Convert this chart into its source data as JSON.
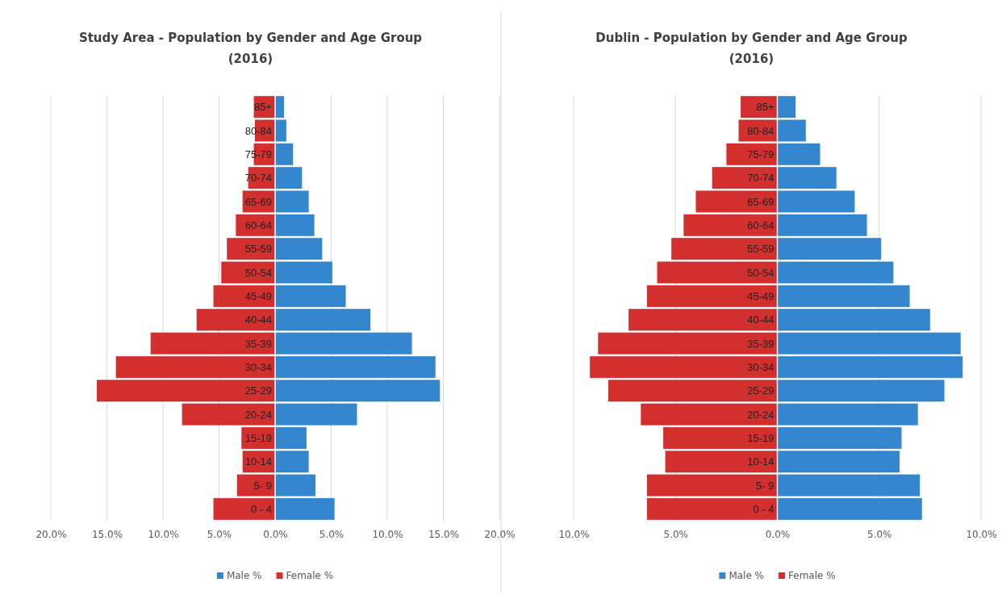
{
  "chart_data": [
    {
      "type": "bar",
      "title": "Study Area - Population by Gender and Age Group (2016)",
      "orientation": "horizontal",
      "stacked": true,
      "categories": [
        "85+",
        "80-84",
        "75-79",
        "70-74",
        "65-69",
        "60-64",
        "55-59",
        "50-54",
        "45-49",
        "40-44",
        "35-39",
        "30-34",
        "25-29",
        "20-24",
        "15-19",
        "10-14",
        "5- 9",
        "0 - 4"
      ],
      "series": [
        {
          "name": "Male %",
          "color": "#3487cf",
          "values": [
            0.8,
            1.0,
            1.6,
            2.4,
            3.0,
            3.5,
            4.2,
            5.1,
            6.3,
            8.5,
            12.2,
            14.3,
            14.7,
            7.3,
            2.8,
            3.0,
            3.6,
            5.3
          ]
        },
        {
          "name": "Female %",
          "color": "#d32f2f",
          "values": [
            -1.9,
            -1.8,
            -1.9,
            -2.4,
            -2.9,
            -3.5,
            -4.3,
            -4.8,
            -5.5,
            -7.0,
            -11.1,
            -14.2,
            -15.9,
            -8.3,
            -3.0,
            -2.9,
            -3.4,
            -5.5
          ]
        }
      ],
      "xlim": [
        -20,
        20
      ],
      "xticks": [
        {
          "value": -20,
          "label": "20.0%"
        },
        {
          "value": -15,
          "label": "15.0%"
        },
        {
          "value": -10,
          "label": "10.0%"
        },
        {
          "value": -5,
          "label": "5.0%"
        },
        {
          "value": 0,
          "label": "0.0%"
        },
        {
          "value": 5,
          "label": "5.0%"
        },
        {
          "value": 10,
          "label": "10.0%"
        },
        {
          "value": 15,
          "label": "15.0%"
        },
        {
          "value": 20,
          "label": "20.0%"
        }
      ],
      "grid": "x",
      "legend": "bottom"
    },
    {
      "type": "bar",
      "title": "Dublin - Population by Gender and Age Group (2016)",
      "orientation": "horizontal",
      "stacked": true,
      "categories": [
        "85+",
        "80-84",
        "75-79",
        "70-74",
        "65-69",
        "60-64",
        "55-59",
        "50-54",
        "45-49",
        "40-44",
        "35-39",
        "30-34",
        "25-29",
        "20-24",
        "15-19",
        "10-14",
        "5- 9",
        "0 - 4"
      ],
      "series": [
        {
          "name": "Male %",
          "color": "#3487cf",
          "values": [
            0.9,
            1.4,
            2.1,
            2.9,
            3.8,
            4.4,
            5.1,
            5.7,
            6.5,
            7.5,
            9.0,
            9.1,
            8.2,
            6.9,
            6.1,
            6.0,
            7.0,
            7.1
          ]
        },
        {
          "name": "Female %",
          "color": "#d32f2f",
          "values": [
            -1.8,
            -1.9,
            -2.5,
            -3.2,
            -4.0,
            -4.6,
            -5.2,
            -5.9,
            -6.4,
            -7.3,
            -8.8,
            -9.2,
            -8.3,
            -6.7,
            -5.6,
            -5.5,
            -6.4,
            -6.4
          ]
        }
      ],
      "xlim": [
        -10,
        10
      ],
      "xticks": [
        {
          "value": -10,
          "label": "10.0%"
        },
        {
          "value": -5,
          "label": "5.0%"
        },
        {
          "value": 0,
          "label": "0.0%"
        },
        {
          "value": 5,
          "label": "5.0%"
        },
        {
          "value": 10,
          "label": "10.0%"
        }
      ],
      "grid": "x",
      "legend": "bottom"
    }
  ]
}
